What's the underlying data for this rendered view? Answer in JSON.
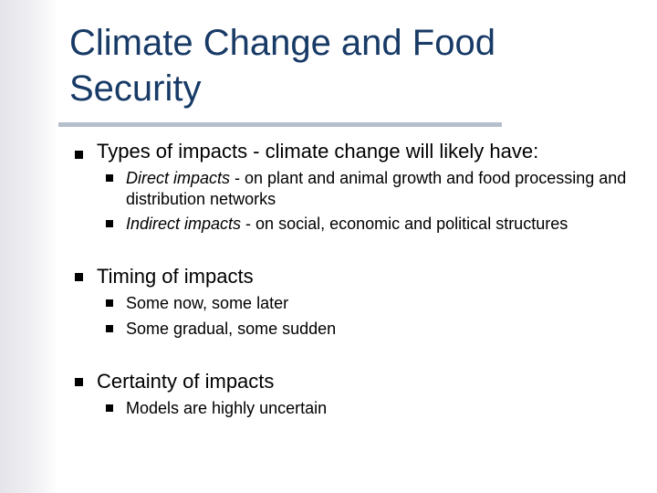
{
  "slide": {
    "title": "Climate Change and Food Security",
    "points": [
      {
        "text": "Types of impacts - climate change will likely have:",
        "subpoints": [
          {
            "emph": "Direct impacts",
            "rest": " - on plant and animal growth and food processing and distribution networks"
          },
          {
            "emph": "Indirect impacts",
            "rest": " - on social, economic and political structures"
          }
        ]
      },
      {
        "text": "Timing of impacts",
        "subpoints": [
          {
            "emph": "",
            "rest": "Some now, some later"
          },
          {
            "emph": "",
            "rest": "Some gradual, some sudden"
          }
        ]
      },
      {
        "text": "Certainty of impacts",
        "subpoints": [
          {
            "emph": "",
            "rest": "Models are highly uncertain"
          }
        ]
      }
    ]
  },
  "colors": {
    "title": "#173a66",
    "rule": "#b5bfcc",
    "text": "#000000"
  },
  "icons": {
    "bullet": "square-bullet-icon"
  }
}
